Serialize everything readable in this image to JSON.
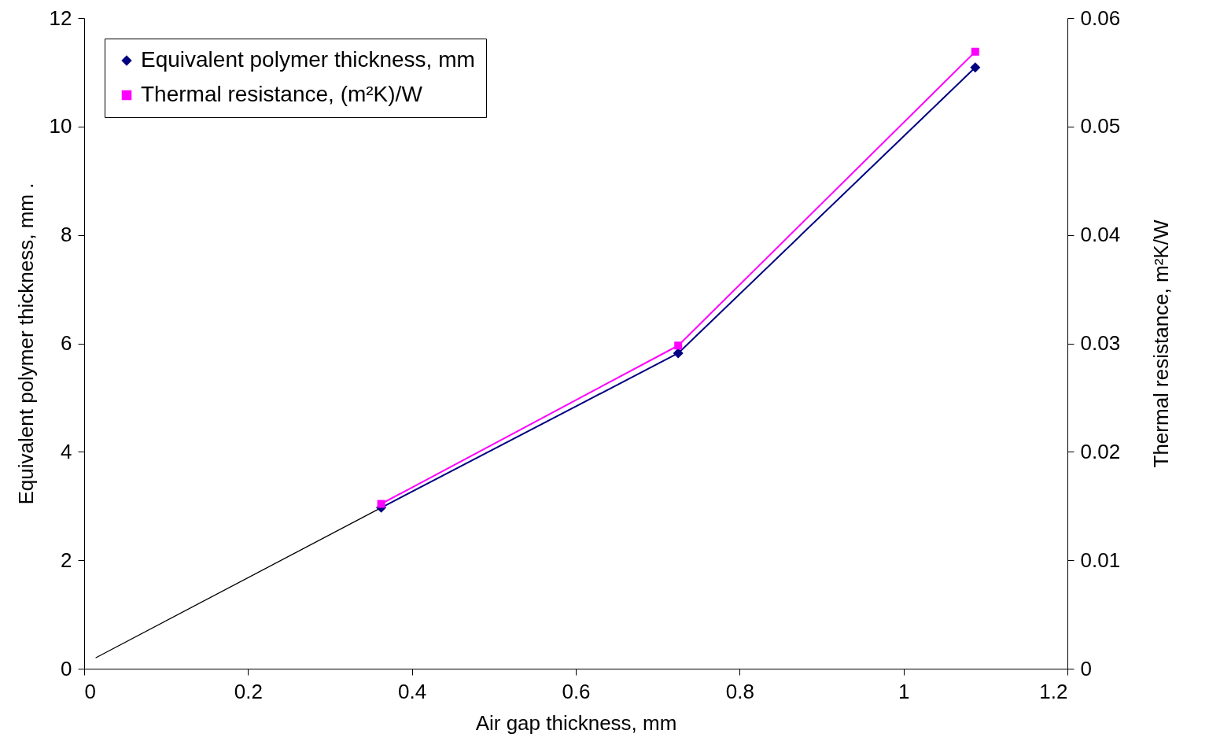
{
  "chart_data": {
    "type": "line",
    "xlabel": "Air gap thickness, mm",
    "ylabel": "Equivalent polymer thickness, mm      .",
    "y2label": "Thermal resistance, m²K/W",
    "xlim": [
      0,
      1.2
    ],
    "xticks": [
      0,
      0.2,
      0.4,
      0.6,
      0.8,
      1,
      1.2
    ],
    "ylim": [
      0,
      12
    ],
    "yticks": [
      0,
      2,
      4,
      6,
      8,
      10,
      12
    ],
    "y2lim": [
      0,
      0.06
    ],
    "y2ticks": [
      0,
      0.01,
      0.02,
      0.03,
      0.04,
      0.05,
      0.06
    ],
    "grid": false,
    "legend": "top left",
    "line_style": "solid",
    "series": [
      {
        "color": "#000000",
        "marker": "none",
        "x": [
          0.014,
          0.3625
        ],
        "values": [
          0.2,
          2.97
        ]
      },
      {
        "name": "Equivalent polymer thickness, mm",
        "color": "#000080",
        "marker": "diamond",
        "x": [
          0.3625,
          0.725,
          1.0875
        ],
        "values": [
          2.97,
          5.82,
          11.09
        ]
      },
      {
        "name": "Thermal resistance, (m²K)/W",
        "color": "#ff00ff",
        "marker": "square",
        "axis": "y2",
        "x": [
          0.3625,
          0.725,
          1.0875
        ],
        "values": [
          0.0152,
          0.0298,
          0.0569
        ]
      }
    ]
  }
}
